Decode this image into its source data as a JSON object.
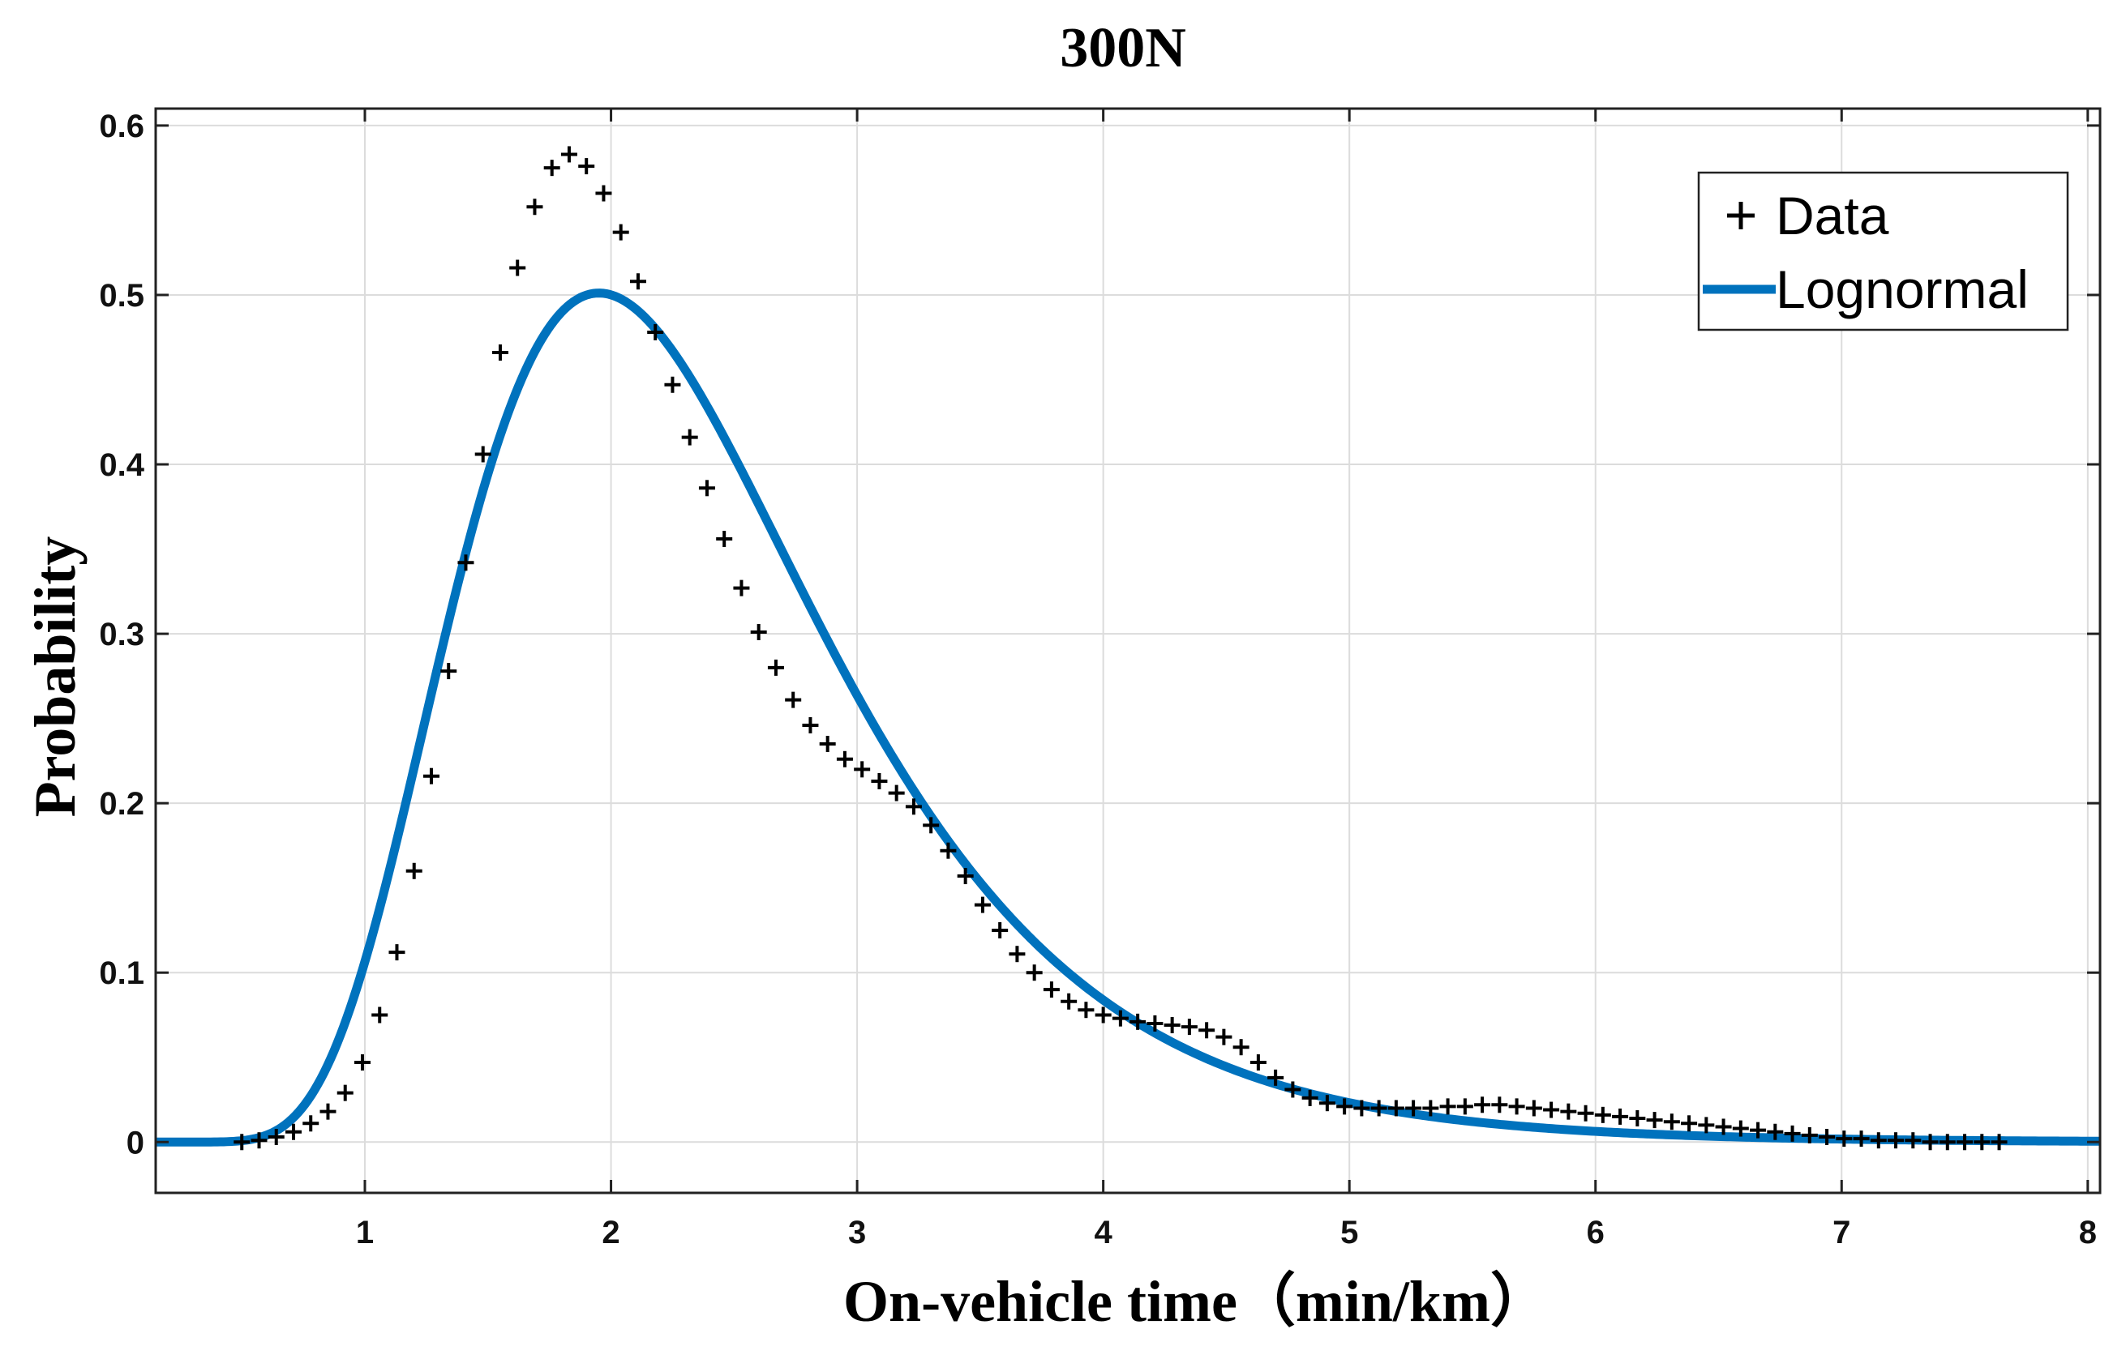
{
  "chart_data": {
    "type": "line",
    "title": "300N",
    "xlabel": "On-vehicle time（min/km）",
    "ylabel": "Probability",
    "xlim": [
      0.15,
      8.05
    ],
    "ylim": [
      -0.03,
      0.61
    ],
    "x_ticks": [
      1,
      2,
      3,
      4,
      5,
      6,
      7,
      8
    ],
    "x_tick_labels": [
      "1",
      "2",
      "3",
      "4",
      "5",
      "6",
      "7",
      "8"
    ],
    "y_ticks": [
      0,
      0.1,
      0.2,
      0.3,
      0.4,
      0.5,
      0.6
    ],
    "y_tick_labels": [
      "0",
      "0.1",
      "0.2",
      "0.3",
      "0.4",
      "0.5",
      "0.6"
    ],
    "grid": true,
    "legend_position": "top-right",
    "series": [
      {
        "name": "Data",
        "kind": "scatter",
        "marker": "+",
        "color": "#000000",
        "x": [
          0.5,
          0.57,
          0.64,
          0.71,
          0.78,
          0.85,
          0.92,
          0.99,
          1.06,
          1.13,
          1.2,
          1.27,
          1.34,
          1.41,
          1.48,
          1.55,
          1.62,
          1.69,
          1.76,
          1.83,
          1.9,
          1.97,
          2.04,
          2.11,
          2.18,
          2.25,
          2.32,
          2.39,
          2.46,
          2.53,
          2.6,
          2.67,
          2.74,
          2.81,
          2.88,
          2.95,
          3.02,
          3.09,
          3.16,
          3.23,
          3.3,
          3.37,
          3.44,
          3.51,
          3.58,
          3.65,
          3.72,
          3.79,
          3.86,
          3.93,
          4.0,
          4.07,
          4.14,
          4.21,
          4.28,
          4.35,
          4.42,
          4.49,
          4.56,
          4.63,
          4.7,
          4.77,
          4.84,
          4.91,
          4.98,
          5.05,
          5.12,
          5.19,
          5.26,
          5.33,
          5.4,
          5.47,
          5.54,
          5.61,
          5.68,
          5.75,
          5.82,
          5.89,
          5.96,
          6.03,
          6.1,
          6.17,
          6.24,
          6.31,
          6.38,
          6.45,
          6.52,
          6.59,
          6.66,
          6.73,
          6.8,
          6.87,
          6.94,
          7.01,
          7.08,
          7.15,
          7.22,
          7.29,
          7.36,
          7.43,
          7.5,
          7.57,
          7.64
        ],
        "y": [
          0.0,
          0.001,
          0.003,
          0.006,
          0.011,
          0.018,
          0.029,
          0.047,
          0.075,
          0.112,
          0.16,
          0.216,
          0.278,
          0.342,
          0.406,
          0.466,
          0.516,
          0.552,
          0.575,
          0.583,
          0.576,
          0.56,
          0.537,
          0.508,
          0.478,
          0.447,
          0.416,
          0.386,
          0.356,
          0.327,
          0.301,
          0.28,
          0.261,
          0.246,
          0.235,
          0.226,
          0.22,
          0.213,
          0.206,
          0.198,
          0.187,
          0.172,
          0.157,
          0.14,
          0.125,
          0.111,
          0.1,
          0.09,
          0.083,
          0.078,
          0.075,
          0.073,
          0.071,
          0.07,
          0.069,
          0.068,
          0.066,
          0.062,
          0.056,
          0.047,
          0.038,
          0.031,
          0.026,
          0.023,
          0.021,
          0.02,
          0.02,
          0.02,
          0.02,
          0.02,
          0.021,
          0.021,
          0.022,
          0.022,
          0.021,
          0.02,
          0.019,
          0.018,
          0.017,
          0.016,
          0.015,
          0.014,
          0.013,
          0.012,
          0.011,
          0.01,
          0.009,
          0.008,
          0.007,
          0.006,
          0.005,
          0.004,
          0.003,
          0.002,
          0.002,
          0.001,
          0.001,
          0.001,
          0.0,
          0.0,
          0.0,
          0.0,
          0.0
        ]
      },
      {
        "name": "Lognormal",
        "kind": "line",
        "color": "#0072BD",
        "mu": 0.8124,
        "sigma": 0.3797,
        "x_range": [
          0.15,
          8.05
        ]
      }
    ]
  }
}
